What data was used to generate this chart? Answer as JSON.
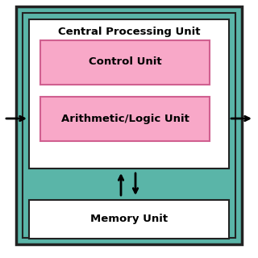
{
  "bg_color": "#ffffff",
  "teal_color": "#5ab5a8",
  "dark_border": "#222222",
  "pink_color": "#f8a8c8",
  "pink_border": "#d06090",
  "white_color": "#ffffff",
  "black_color": "#000000",
  "cpu_label": "Central Processing Unit",
  "control_label": "Control Unit",
  "alu_label": "Arithmetic/Logic Unit",
  "memory_label": "Memory Unit",
  "font_size_cpu": 9.5,
  "font_size_boxes": 9.5
}
